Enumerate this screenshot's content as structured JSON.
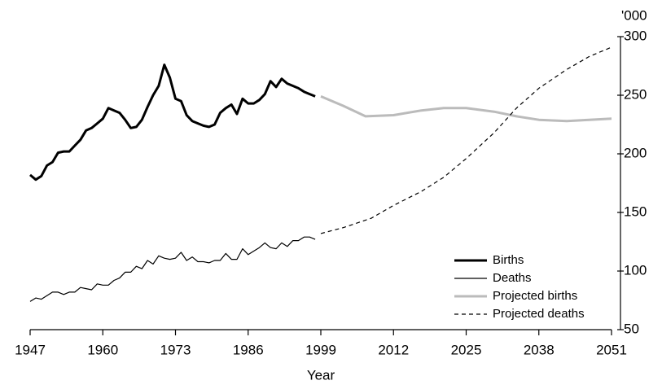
{
  "chart_data": {
    "type": "line",
    "x_label": "Year",
    "y_unit_label": "'000",
    "xlim": [
      1947,
      2051
    ],
    "xticks": [
      1947,
      1960,
      1973,
      1986,
      1999,
      2012,
      2025,
      2038,
      2051
    ],
    "ylim": [
      50,
      300
    ],
    "yticks": [
      50,
      100,
      150,
      200,
      250,
      300
    ],
    "legend": "lower right",
    "series": [
      {
        "name": "Births",
        "color": "#000000",
        "width": 3,
        "dash": "solid",
        "x": [
          1947,
          1948,
          1949,
          1950,
          1951,
          1952,
          1953,
          1954,
          1955,
          1956,
          1957,
          1958,
          1959,
          1960,
          1961,
          1962,
          1963,
          1964,
          1965,
          1966,
          1967,
          1968,
          1969,
          1970,
          1971,
          1972,
          1973,
          1974,
          1975,
          1976,
          1977,
          1978,
          1979,
          1980,
          1981,
          1982,
          1983,
          1984,
          1985,
          1986,
          1987,
          1988,
          1989,
          1990,
          1991,
          1992,
          1993,
          1994,
          1995,
          1996,
          1997,
          1998
        ],
        "values": [
          182,
          178,
          181,
          190,
          193,
          201,
          202,
          202,
          207,
          212,
          220,
          222,
          226,
          230,
          239,
          237,
          235,
          229,
          222,
          223,
          229,
          240,
          250,
          258,
          276,
          265,
          247,
          245,
          233,
          228,
          226,
          224,
          223,
          225,
          235,
          239,
          242,
          234,
          247,
          243,
          243,
          246,
          251,
          262,
          257,
          264,
          260,
          258,
          256,
          253,
          251,
          249
        ]
      },
      {
        "name": "Deaths",
        "color": "#000000",
        "width": 1.2,
        "dash": "solid",
        "x": [
          1947,
          1948,
          1949,
          1950,
          1951,
          1952,
          1953,
          1954,
          1955,
          1956,
          1957,
          1958,
          1959,
          1960,
          1961,
          1962,
          1963,
          1964,
          1965,
          1966,
          1967,
          1968,
          1969,
          1970,
          1971,
          1972,
          1973,
          1974,
          1975,
          1976,
          1977,
          1978,
          1979,
          1980,
          1981,
          1982,
          1983,
          1984,
          1985,
          1986,
          1987,
          1988,
          1989,
          1990,
          1991,
          1992,
          1993,
          1994,
          1995,
          1996,
          1997,
          1998
        ],
        "values": [
          74,
          77,
          76,
          79,
          82,
          82,
          80,
          82,
          82,
          86,
          85,
          84,
          89,
          88,
          88,
          92,
          94,
          99,
          99,
          104,
          102,
          109,
          106,
          113,
          111,
          110,
          111,
          116,
          109,
          112,
          108,
          108,
          107,
          109,
          109,
          115,
          110,
          110,
          119,
          114,
          117,
          120,
          124,
          120,
          119,
          124,
          121,
          126,
          126,
          129,
          129,
          127
        ]
      },
      {
        "name": "Projected births",
        "color": "#bbbbbb",
        "width": 3,
        "dash": "solid",
        "x": [
          1999,
          2003,
          2007,
          2012,
          2017,
          2021,
          2025,
          2030,
          2034,
          2038,
          2043,
          2047,
          2051
        ],
        "values": [
          249,
          241,
          232,
          233,
          237,
          239,
          239,
          236,
          232,
          229,
          228,
          229,
          230
        ]
      },
      {
        "name": "Projected deaths",
        "color": "#000000",
        "width": 1.2,
        "dash": "dashed",
        "x": [
          1999,
          2003,
          2008,
          2012,
          2017,
          2021,
          2025,
          2030,
          2034,
          2038,
          2043,
          2047,
          2051
        ],
        "values": [
          132,
          137,
          145,
          156,
          168,
          180,
          196,
          218,
          239,
          256,
          272,
          283,
          291
        ]
      }
    ]
  }
}
